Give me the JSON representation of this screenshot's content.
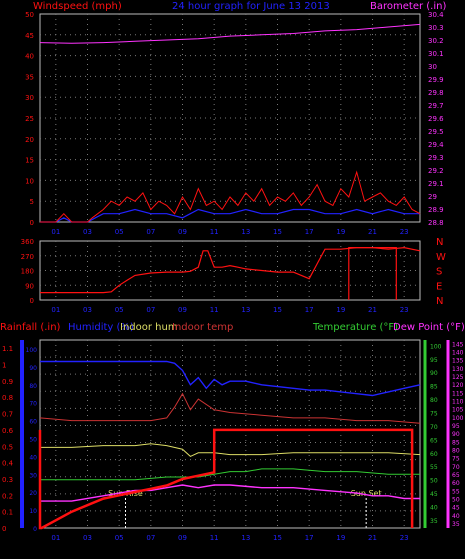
{
  "title": "24 hour graph for  June 13 2013",
  "colors": {
    "grid": "#777777",
    "wind_avg": "#2222ff",
    "wind_gust": "#ff1111",
    "barometer": "#ff33ff",
    "direction": "#ff1111",
    "humidity": "#2222ff",
    "indoor_hum": "#dddd66",
    "indoor_temp": "#cc3333",
    "temperature": "#33cc33",
    "dew_point": "#ff33ff",
    "rainfall": "#ff1111",
    "sun_marker": "#ffffff"
  },
  "chart_data": [
    {
      "type": "line",
      "title": "24 hour graph for  June 13 2013",
      "ylabel": "Windspeed (mph)",
      "y2label": "Barometer (.in)",
      "x_ticks": [
        "01",
        "03",
        "05",
        "07",
        "09",
        "11",
        "13",
        "15",
        "17",
        "19",
        "21",
        "23"
      ],
      "y_ticks": [
        0,
        5,
        10,
        15,
        20,
        25,
        30,
        35,
        40,
        45,
        50
      ],
      "y2_ticks": [
        "28.8",
        "28.9",
        "29",
        "29.1",
        "29.2",
        "29.3",
        "29.4",
        "29.5",
        "29.6",
        "29.7",
        "29.8",
        "29.9",
        "30",
        "30.1",
        "30.2",
        "30.3",
        "30.4"
      ],
      "ylim": [
        0,
        50
      ],
      "y2lim": [
        28.8,
        30.4
      ],
      "xlim": [
        0,
        24
      ],
      "series": [
        {
          "name": "barometer",
          "axis": "y2",
          "x": [
            0,
            2,
            4,
            6,
            8,
            10,
            12,
            14,
            16,
            18,
            20,
            22,
            24
          ],
          "values": [
            30.18,
            30.175,
            30.18,
            30.19,
            30.2,
            30.21,
            30.23,
            30.24,
            30.25,
            30.27,
            30.28,
            30.3,
            30.32
          ]
        },
        {
          "name": "wind_avg",
          "axis": "y",
          "x": [
            0,
            1,
            1.5,
            2,
            3,
            3.5,
            4,
            5,
            6,
            7,
            8,
            9,
            10,
            11,
            12,
            13,
            14,
            15,
            16,
            17,
            18,
            19,
            20,
            21,
            22,
            23,
            24
          ],
          "values": [
            0,
            0,
            1,
            0,
            0,
            1,
            2,
            2,
            3,
            2,
            2,
            1,
            3,
            2,
            2,
            3,
            2,
            2,
            3,
            3,
            2,
            2,
            3,
            2,
            3,
            2,
            2
          ]
        },
        {
          "name": "wind_gust",
          "axis": "y",
          "x": [
            0,
            1,
            1.5,
            2,
            3,
            3.3,
            4,
            4.5,
            5,
            5.5,
            6,
            6.5,
            7,
            7.5,
            8,
            8.5,
            9,
            9.5,
            10,
            10.5,
            11,
            11.5,
            12,
            12.5,
            13,
            13.5,
            14,
            14.5,
            15,
            15.5,
            16,
            16.5,
            17,
            17.5,
            18,
            18.5,
            19,
            19.5,
            20,
            20.5,
            21,
            21.5,
            22,
            22.5,
            23,
            23.5,
            24
          ],
          "values": [
            0,
            0,
            2,
            0,
            0,
            1,
            3,
            5,
            4,
            6,
            5,
            7,
            3,
            5,
            4,
            2,
            6,
            3,
            8,
            4,
            5,
            3,
            6,
            4,
            7,
            5,
            8,
            4,
            6,
            5,
            7,
            4,
            6,
            9,
            5,
            4,
            8,
            6,
            12,
            5,
            6,
            7,
            5,
            4,
            6,
            3,
            2
          ]
        }
      ]
    },
    {
      "type": "line",
      "y_ticks": [
        0,
        90,
        180,
        270,
        360
      ],
      "y2_ticks": [
        "N",
        "W",
        "S",
        "E",
        "N"
      ],
      "ylim": [
        0,
        360
      ],
      "xlim": [
        0,
        24
      ],
      "series": [
        {
          "name": "direction",
          "x": [
            0,
            2,
            3,
            4,
            4.5,
            5,
            5.5,
            6,
            7,
            8,
            9,
            9.5,
            10,
            10.3,
            10.6,
            11,
            11.5,
            12,
            12.5,
            13,
            14,
            15,
            16,
            17,
            17.5,
            18,
            19,
            20,
            21,
            22,
            23,
            24
          ],
          "values": [
            45,
            45,
            45,
            45,
            50,
            90,
            120,
            150,
            165,
            170,
            170,
            175,
            200,
            300,
            300,
            200,
            200,
            210,
            200,
            190,
            180,
            170,
            170,
            130,
            220,
            310,
            310,
            320,
            320,
            310,
            320,
            300
          ]
        },
        {
          "name": "direction_spikes",
          "x": [
            19.5,
            19.5,
            19.5,
            22.5,
            22.5,
            22.5
          ],
          "values": [
            320,
            0,
            320,
            320,
            0,
            320
          ]
        }
      ]
    },
    {
      "type": "line",
      "ylabel": "Rainfall (.in)",
      "y_ticks": [
        "0",
        "0.1",
        "0.2",
        "0.3",
        "0.4",
        "0.5",
        "0.6",
        "0.7",
        "0.8",
        "0.9",
        "1",
        "1.1"
      ],
      "ylim": [
        0,
        1.15
      ],
      "y_hum_ticks": [
        0,
        10,
        20,
        30,
        40,
        50,
        60,
        70,
        80,
        90,
        100
      ],
      "y_temp_ticks": [
        35,
        40,
        45,
        50,
        55,
        60,
        65,
        70,
        75,
        80,
        85,
        90,
        95,
        100
      ],
      "y_dew_ticks": [
        35,
        40,
        45,
        50,
        55,
        60,
        65,
        70,
        75,
        80,
        85,
        90,
        95,
        100,
        105,
        110,
        115,
        120,
        125,
        130,
        135,
        140,
        145
      ],
      "legend": [
        "Rainfall (.in)",
        "Humidity (%)",
        "Indoor hum",
        "Indoor temp",
        "Temperature (°F)",
        "Dew Point (°F)"
      ],
      "xlim": [
        0,
        24
      ],
      "annotations": [
        {
          "text": "Sun Rise",
          "x": 5.4
        },
        {
          "text": "Sun Set",
          "x": 20.6
        }
      ],
      "series": [
        {
          "name": "humidity",
          "scale": "hum",
          "x": [
            0,
            2,
            4,
            6,
            8,
            8.5,
            9,
            9.5,
            10,
            10.5,
            11,
            11.5,
            12,
            13,
            14,
            15,
            16,
            17,
            18,
            19,
            20,
            21,
            22,
            23,
            24
          ],
          "values": [
            93,
            93,
            93,
            93,
            93,
            92,
            88,
            80,
            84,
            78,
            83,
            80,
            82,
            82,
            80,
            79,
            78,
            77,
            77,
            76,
            75,
            74,
            76,
            78,
            80
          ]
        },
        {
          "name": "indoor_temp",
          "scale": "temp",
          "x": [
            0,
            2,
            4,
            6,
            7,
            8,
            8.5,
            9,
            9.5,
            10,
            11,
            12,
            14,
            16,
            18,
            20,
            22,
            24
          ],
          "values": [
            73,
            72,
            72,
            72,
            72,
            73,
            77,
            82,
            76,
            80,
            76,
            75,
            74,
            73,
            73,
            72,
            72,
            71
          ]
        },
        {
          "name": "indoor_hum",
          "scale": "hum",
          "x": [
            0,
            2,
            4,
            6,
            7,
            8,
            9,
            9.5,
            10,
            11,
            12,
            14,
            16,
            18,
            20,
            22,
            24
          ],
          "values": [
            45,
            45,
            46,
            46,
            47,
            46,
            44,
            40,
            42,
            42,
            41,
            41,
            42,
            42,
            42,
            42,
            41
          ]
        },
        {
          "name": "temperature",
          "scale": "temp",
          "x": [
            0,
            2,
            4,
            6,
            8,
            9,
            10,
            11,
            12,
            13,
            14,
            16,
            18,
            20,
            22,
            24
          ],
          "values": [
            50,
            50,
            50,
            50,
            51,
            51,
            51,
            52,
            53,
            53,
            54,
            54,
            53,
            53,
            52,
            52
          ]
        },
        {
          "name": "dew_point",
          "scale": "temp",
          "x": [
            0,
            2,
            4,
            5,
            6,
            7,
            8,
            9,
            10,
            11,
            12,
            14,
            16,
            18,
            20,
            21,
            22,
            23,
            24
          ],
          "values": [
            42,
            42,
            44,
            45,
            46,
            46,
            47,
            48,
            47,
            48,
            48,
            47,
            47,
            46,
            45,
            44,
            44,
            43,
            43
          ]
        },
        {
          "name": "rainfall",
          "scale": "rain",
          "x": [
            0,
            0,
            0.1,
            2,
            4,
            5,
            6,
            7,
            8,
            9,
            10,
            11,
            11,
            12,
            14,
            16,
            18,
            20,
            22,
            23.5,
            23.5
          ],
          "values": [
            0.6,
            0,
            0,
            0.1,
            0.18,
            0.2,
            0.22,
            0.24,
            0.26,
            0.3,
            0.32,
            0.34,
            0.6,
            0.6,
            0.6,
            0.6,
            0.6,
            0.6,
            0.6,
            0.6,
            0
          ]
        }
      ]
    }
  ]
}
